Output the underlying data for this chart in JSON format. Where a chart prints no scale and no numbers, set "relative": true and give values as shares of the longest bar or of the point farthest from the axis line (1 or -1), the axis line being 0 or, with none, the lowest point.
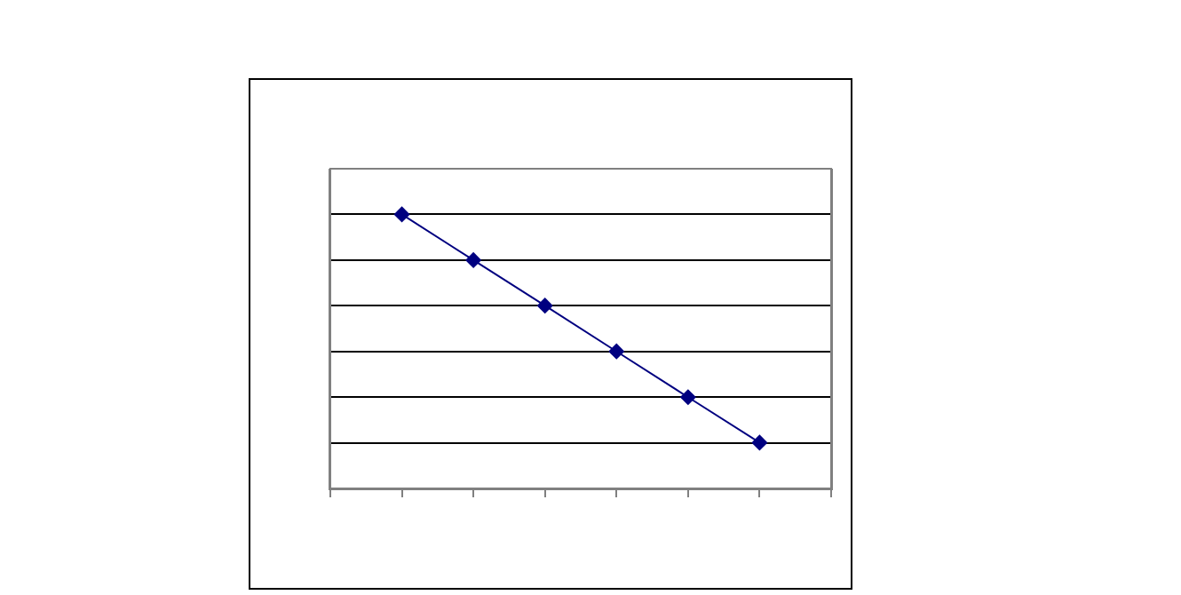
{
  "chart_data": {
    "type": "line",
    "relative": true,
    "categories": [
      null,
      null,
      null,
      null,
      null,
      null
    ],
    "series": [
      {
        "color": "#000080",
        "values": [
          1,
          0.833,
          0.667,
          0.5,
          0.333,
          0.167
        ]
      }
    ],
    "grid": "y",
    "marker": "diamond",
    "line_style": "solid",
    "legend": false
  }
}
